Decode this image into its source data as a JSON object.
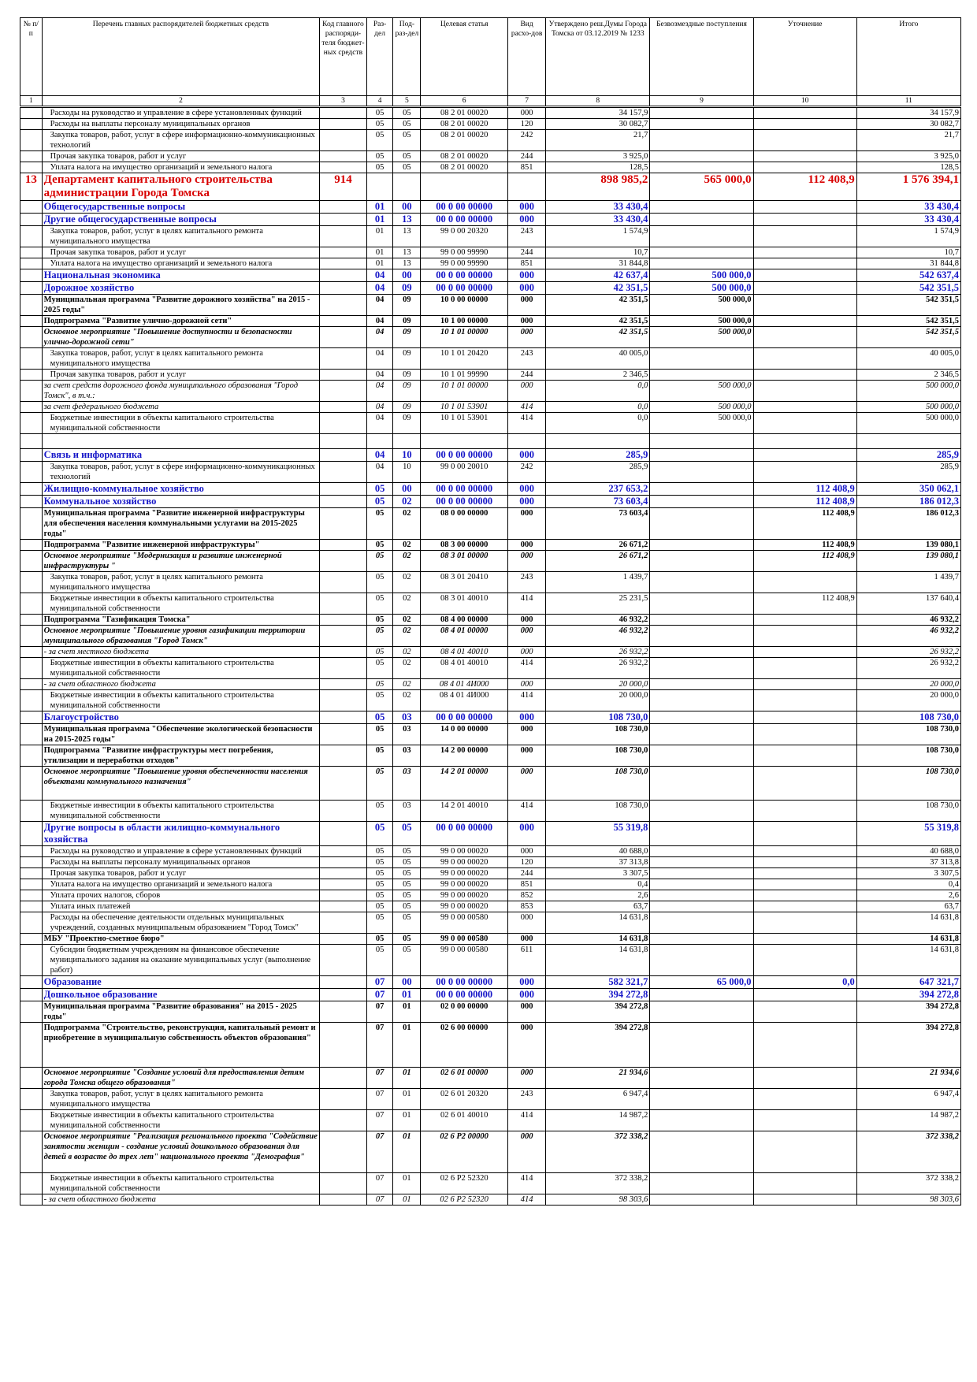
{
  "header": {
    "col_no": "№ п/п",
    "col_name": "Перечень главных распорядителей бюджетных средств",
    "col_code": "Код главного распоряди-теля бюджет-ных средств",
    "col_section": "Раз-дел",
    "col_subsection": "Под-раз-дел",
    "col_target": "Целевая статья",
    "col_expense_type": "Вид расхо-дов",
    "col_approved": "Утверждено реш.Думы Города Томска от 03.12.2019 № 1233",
    "col_grants": "Безвозмездные поступления",
    "col_refine": "Уточнение",
    "col_total": "Итого",
    "numbers": [
      "1",
      "2",
      "3",
      "4",
      "5",
      "6",
      "7",
      "8",
      "9",
      "10",
      "11"
    ]
  },
  "rows": [
    {
      "s": "norm",
      "no": "",
      "name": "Расходы на руководство и управление в сфере установленных функций",
      "code": "",
      "r": "05",
      "p": "05",
      "cs": "08 2 01 00020",
      "vr": "000",
      "a": "34 157,9",
      "b": "",
      "c": "",
      "t": "34 157,9"
    },
    {
      "s": "norm",
      "no": "",
      "name": "Расходы на выплаты персоналу муниципальных органов",
      "code": "",
      "r": "05",
      "p": "05",
      "cs": "08 2 01 00020",
      "vr": "120",
      "a": "30 082,7",
      "b": "",
      "c": "",
      "t": "30 082,7"
    },
    {
      "s": "norm",
      "no": "",
      "name": "Закупка товаров, работ, услуг в сфере информационно-коммуникационных технологий",
      "code": "",
      "r": "05",
      "p": "05",
      "cs": "08 2 01 00020",
      "vr": "242",
      "a": "21,7",
      "b": "",
      "c": "",
      "t": "21,7"
    },
    {
      "s": "norm",
      "no": "",
      "name": "Прочая закупка товаров, работ и услуг",
      "code": "",
      "r": "05",
      "p": "05",
      "cs": "08 2 01 00020",
      "vr": "244",
      "a": "3 925,0",
      "b": "",
      "c": "",
      "t": "3 925,0"
    },
    {
      "s": "norm",
      "no": "",
      "name": "Уплата налога на имущество организаций и земельного налога",
      "code": "",
      "r": "05",
      "p": "05",
      "cs": "08 2 01 00020",
      "vr": "851",
      "a": "128,5",
      "b": "",
      "c": "",
      "t": "128,5"
    },
    {
      "s": "red",
      "no": "13",
      "name": "Департамент капитального строительства администрации Города Томска",
      "code": "914",
      "r": "",
      "p": "",
      "cs": "",
      "vr": "",
      "a": "898 985,2",
      "b": "565 000,0",
      "c": "112 408,9",
      "t": "1 576 394,1"
    },
    {
      "s": "blue",
      "no": "",
      "name": "Общегосударственные вопросы",
      "code": "",
      "r": "01",
      "p": "00",
      "cs": "00 0 00 00000",
      "vr": "000",
      "a": "33 430,4",
      "b": "",
      "c": "",
      "t": "33 430,4"
    },
    {
      "s": "blue",
      "no": "",
      "name": "Другие общегосударственные вопросы",
      "code": "",
      "r": "01",
      "p": "13",
      "cs": "00 0 00 00000",
      "vr": "000",
      "a": "33 430,4",
      "b": "",
      "c": "",
      "t": "33 430,4"
    },
    {
      "s": "norm",
      "no": "",
      "name": "Закупка товаров, работ, услуг в целях капитального ремонта муниципального имущества",
      "code": "",
      "r": "01",
      "p": "13",
      "cs": "99 0 00 20320",
      "vr": "243",
      "a": "1 574,9",
      "b": "",
      "c": "",
      "t": "1 574,9"
    },
    {
      "s": "norm",
      "no": "",
      "name": "Прочая закупка товаров, работ и услуг",
      "code": "",
      "r": "01",
      "p": "13",
      "cs": "99 0 00 99990",
      "vr": "244",
      "a": "10,7",
      "b": "",
      "c": "",
      "t": "10,7"
    },
    {
      "s": "norm",
      "no": "",
      "name": "Уплата налога на имущество организаций и земельного налога",
      "code": "",
      "r": "01",
      "p": "13",
      "cs": "99 0 00 99990",
      "vr": "851",
      "a": "31 844,8",
      "b": "",
      "c": "",
      "t": "31 844,8"
    },
    {
      "s": "blue",
      "no": "",
      "name": "Национальная экономика",
      "code": "",
      "r": "04",
      "p": "00",
      "cs": "00 0 00 00000",
      "vr": "000",
      "a": "42 637,4",
      "b": "500 000,0",
      "c": "",
      "t": "542 637,4"
    },
    {
      "s": "blue",
      "no": "",
      "name": "Дорожное хозяйство",
      "code": "",
      "r": "04",
      "p": "09",
      "cs": "00 0 00 00000",
      "vr": "000",
      "a": "42 351,5",
      "b": "500 000,0",
      "c": "",
      "t": "542 351,5"
    },
    {
      "s": "bold",
      "no": "",
      "name": "Муниципальная программа \"Развитие дорожного хозяйства\" на 2015 - 2025 годы\"",
      "code": "",
      "r": "04",
      "p": "09",
      "cs": "10 0 00 00000",
      "vr": "000",
      "a": "42 351,5",
      "b": "500 000,0",
      "c": "",
      "t": "542 351,5"
    },
    {
      "s": "bold",
      "no": "",
      "name": "Подпрограмма \"Развитие улично-дорожной сети\"",
      "code": "",
      "r": "04",
      "p": "09",
      "cs": "10 1 00 00000",
      "vr": "000",
      "a": "42 351,5",
      "b": "500 000,0",
      "c": "",
      "t": "542 351,5"
    },
    {
      "s": "bi",
      "no": "",
      "name": "Основное мероприятие \"Повышение доступности и безопасности улично-дорожной сети\"",
      "code": "",
      "r": "04",
      "p": "09",
      "cs": "10 1 01 00000",
      "vr": "000",
      "a": "42 351,5",
      "b": "500 000,0",
      "c": "",
      "t": "542 351,5"
    },
    {
      "s": "norm",
      "no": "",
      "name": "Закупка товаров, работ, услуг в целях капитального ремонта муниципального имущества",
      "code": "",
      "r": "04",
      "p": "09",
      "cs": "10 1 01 20420",
      "vr": "243",
      "a": "40 005,0",
      "b": "",
      "c": "",
      "t": "40 005,0"
    },
    {
      "s": "norm",
      "no": "",
      "name": "Прочая закупка товаров, работ и услуг",
      "code": "",
      "r": "04",
      "p": "09",
      "cs": "10 1 01 99990",
      "vr": "244",
      "a": "2 346,5",
      "b": "",
      "c": "",
      "t": "2 346,5"
    },
    {
      "s": "it",
      "no": "",
      "name": "за счет средств дорожного фонда муниципального образования \"Город Томск\", в т.ч.:",
      "code": "",
      "r": "04",
      "p": "09",
      "cs": "10 1 01 00000",
      "vr": "000",
      "a": "0,0",
      "b": "500 000,0",
      "c": "",
      "t": "500 000,0"
    },
    {
      "s": "it",
      "no": "",
      "name": "за счет федерального бюджета",
      "code": "",
      "r": "04",
      "p": "09",
      "cs": "10 1 01 53901",
      "vr": "414",
      "a": "0,0",
      "b": "500 000,0",
      "c": "",
      "t": "500 000,0"
    },
    {
      "s": "norm",
      "no": "",
      "name": "Бюджетные инвестиции в объекты капитального строительства муниципальной собственности",
      "code": "",
      "r": "04",
      "p": "09",
      "cs": "10 1 01 53901",
      "vr": "414",
      "a": "0,0",
      "b": "500 000,0",
      "c": "",
      "t": "500 000,0"
    },
    {
      "s": "gap",
      "no": "",
      "name": "",
      "code": "",
      "r": "",
      "p": "",
      "cs": "",
      "vr": "",
      "a": "",
      "b": "",
      "c": "",
      "t": ""
    },
    {
      "s": "blue",
      "no": "",
      "name": "Связь и информатика",
      "code": "",
      "r": "04",
      "p": "10",
      "cs": "00 0 00 00000",
      "vr": "000",
      "a": "285,9",
      "b": "",
      "c": "",
      "t": "285,9"
    },
    {
      "s": "norm",
      "no": "",
      "name": "Закупка товаров, работ, услуг в сфере информационно-коммуникационных технологий",
      "code": "",
      "r": "04",
      "p": "10",
      "cs": "99 0 00 20010",
      "vr": "242",
      "a": "285,9",
      "b": "",
      "c": "",
      "t": "285,9"
    },
    {
      "s": "blue",
      "no": "",
      "name": "Жилищно-коммунальное хозяйство",
      "code": "",
      "r": "05",
      "p": "00",
      "cs": "00 0 00 00000",
      "vr": "000",
      "a": "237 653,2",
      "b": "",
      "c": "112 408,9",
      "t": "350 062,1"
    },
    {
      "s": "blue",
      "no": "",
      "name": "Коммунальное хозяйство",
      "code": "",
      "r": "05",
      "p": "02",
      "cs": "00 0 00 00000",
      "vr": "000",
      "a": "73 603,4",
      "b": "",
      "c": "112 408,9",
      "t": "186 012,3"
    },
    {
      "s": "bold",
      "no": "",
      "name": "Муниципальная программа \"Развитие инженерной инфраструктуры для обеспечения населения коммунальными услугами на 2015-2025 годы\"",
      "code": "",
      "r": "05",
      "p": "02",
      "cs": "08 0 00 00000",
      "vr": "000",
      "a": "73 603,4",
      "b": "",
      "c": "112 408,9",
      "t": "186 012,3"
    },
    {
      "s": "bold",
      "no": "",
      "name": "Подпрограмма \"Развитие инженерной инфраструктуры\"",
      "code": "",
      "r": "05",
      "p": "02",
      "cs": "08 3 00 00000",
      "vr": "000",
      "a": "26 671,2",
      "b": "",
      "c": "112 408,9",
      "t": "139 080,1"
    },
    {
      "s": "bi",
      "no": "",
      "name": "Основное мероприятие \"Модернизация и развитие инженерной инфраструктуры \"",
      "code": "",
      "r": "05",
      "p": "02",
      "cs": "08 3 01 00000",
      "vr": "000",
      "a": "26 671,2",
      "b": "",
      "c": "112 408,9",
      "t": "139 080,1"
    },
    {
      "s": "norm",
      "no": "",
      "name": "Закупка товаров, работ, услуг в целях капитального ремонта муниципального имущества",
      "code": "",
      "r": "05",
      "p": "02",
      "cs": "08 3 01 20410",
      "vr": "243",
      "a": "1 439,7",
      "b": "",
      "c": "",
      "t": "1 439,7"
    },
    {
      "s": "norm",
      "no": "",
      "name": "Бюджетные инвестиции в объекты капитального строительства муниципальной собственности",
      "code": "",
      "r": "05",
      "p": "02",
      "cs": "08 3 01 40010",
      "vr": "414",
      "a": "25 231,5",
      "b": "",
      "c": "112 408,9",
      "t": "137 640,4"
    },
    {
      "s": "bold",
      "no": "",
      "name": "Подпрограмма \"Газификация Томска\"",
      "code": "",
      "r": "05",
      "p": "02",
      "cs": "08 4 00 00000",
      "vr": "000",
      "a": "46 932,2",
      "b": "",
      "c": "",
      "t": "46 932,2"
    },
    {
      "s": "bi",
      "no": "",
      "name": "Основное мероприятие \"Повышение уровня газификации территории муниципального образования \"Город Томск\"",
      "code": "",
      "r": "05",
      "p": "02",
      "cs": "08 4 01 00000",
      "vr": "000",
      "a": "46 932,2",
      "b": "",
      "c": "",
      "t": "46 932,2"
    },
    {
      "s": "it",
      "no": "",
      "name": "- за счет местного бюджета",
      "code": "",
      "r": "05",
      "p": "02",
      "cs": "08 4 01 40010",
      "vr": "000",
      "a": "26 932,2",
      "b": "",
      "c": "",
      "t": "26 932,2"
    },
    {
      "s": "norm",
      "no": "",
      "name": "Бюджетные инвестиции в объекты капитального строительства муниципальной собственности",
      "code": "",
      "r": "05",
      "p": "02",
      "cs": "08 4 01 40010",
      "vr": "414",
      "a": "26 932,2",
      "b": "",
      "c": "",
      "t": "26 932,2"
    },
    {
      "s": "it",
      "no": "",
      "name": "- за счет областного бюджета",
      "code": "",
      "r": "05",
      "p": "02",
      "cs": "08 4 01 4И000",
      "vr": "000",
      "a": "20 000,0",
      "b": "",
      "c": "",
      "t": "20 000,0"
    },
    {
      "s": "norm",
      "no": "",
      "name": "Бюджетные инвестиции в объекты капитального строительства муниципальной собственности",
      "code": "",
      "r": "05",
      "p": "02",
      "cs": "08 4 01 4И000",
      "vr": "414",
      "a": "20 000,0",
      "b": "",
      "c": "",
      "t": "20 000,0"
    },
    {
      "s": "blue",
      "no": "",
      "name": "Благоустройство",
      "code": "",
      "r": "05",
      "p": "03",
      "cs": "00 0 00 00000",
      "vr": "000",
      "a": "108 730,0",
      "b": "",
      "c": "",
      "t": "108 730,0"
    },
    {
      "s": "bold",
      "no": "",
      "name": "Муниципальная программа \"Обеспечение экологической безопасности на 2015-2025 годы\"",
      "code": "",
      "r": "05",
      "p": "03",
      "cs": "14 0 00 00000",
      "vr": "000",
      "a": "108 730,0",
      "b": "",
      "c": "",
      "t": "108 730,0"
    },
    {
      "s": "bold",
      "no": "",
      "name": "Подпрограмма \"Развитие инфраструктуры мест погребения, утилизации и переработки отходов\"",
      "code": "",
      "r": "05",
      "p": "03",
      "cs": "14 2 00 00000",
      "vr": "000",
      "a": "108 730,0",
      "b": "",
      "c": "",
      "t": "108 730,0"
    },
    {
      "s": "bi",
      "no": "",
      "name": "Основное мероприятие \"Повышение уровня обеспеченности населения объектами коммунального назначения\"",
      "code": "",
      "r": "05",
      "p": "03",
      "cs": "14 2 01 00000",
      "vr": "000",
      "a": "108 730,0",
      "b": "",
      "c": "",
      "t": "108 730,0",
      "h": 42
    },
    {
      "s": "norm",
      "no": "",
      "name": "Бюджетные инвестиции в объекты капитального строительства муниципальной собственности",
      "code": "",
      "r": "05",
      "p": "03",
      "cs": "14 2 01 40010",
      "vr": "414",
      "a": "108 730,0",
      "b": "",
      "c": "",
      "t": "108 730,0"
    },
    {
      "s": "blue",
      "no": "",
      "name": "Другие вопросы в области жилищно-коммунального хозяйства",
      "code": "",
      "r": "05",
      "p": "05",
      "cs": "00 0 00 00000",
      "vr": "000",
      "a": "55 319,8",
      "b": "",
      "c": "",
      "t": "55 319,8"
    },
    {
      "s": "norm",
      "no": "",
      "name": "Расходы на руководство и управление в сфере установленных функций",
      "code": "",
      "r": "05",
      "p": "05",
      "cs": "99 0 00 00020",
      "vr": "000",
      "a": "40 688,0",
      "b": "",
      "c": "",
      "t": "40 688,0"
    },
    {
      "s": "norm",
      "no": "",
      "name": "Расходы на выплаты персоналу муниципальных органов",
      "code": "",
      "r": "05",
      "p": "05",
      "cs": "99 0 00 00020",
      "vr": "120",
      "a": "37 313,8",
      "b": "",
      "c": "",
      "t": "37 313,8"
    },
    {
      "s": "norm",
      "no": "",
      "name": "Прочая закупка товаров, работ и услуг",
      "code": "",
      "r": "05",
      "p": "05",
      "cs": "99 0 00 00020",
      "vr": "244",
      "a": "3 307,5",
      "b": "",
      "c": "",
      "t": "3 307,5"
    },
    {
      "s": "norm",
      "no": "",
      "name": "Уплата налога на имущество организаций и земельного налога",
      "code": "",
      "r": "05",
      "p": "05",
      "cs": "99 0 00 00020",
      "vr": "851",
      "a": "0,4",
      "b": "",
      "c": "",
      "t": "0,4"
    },
    {
      "s": "norm",
      "no": "",
      "name": "Уплата прочих налогов, сборов",
      "code": "",
      "r": "05",
      "p": "05",
      "cs": "99 0 00 00020",
      "vr": "852",
      "a": "2,6",
      "b": "",
      "c": "",
      "t": "2,6"
    },
    {
      "s": "norm",
      "no": "",
      "name": "Уплата иных платежей",
      "code": "",
      "r": "05",
      "p": "05",
      "cs": "99 0 00 00020",
      "vr": "853",
      "a": "63,7",
      "b": "",
      "c": "",
      "t": "63,7"
    },
    {
      "s": "norm",
      "no": "",
      "name": "Расходы на обеспечение деятельности отдельных муниципальных учреждений, созданных муниципальным образованием \"Город Томск\"",
      "code": "",
      "r": "05",
      "p": "05",
      "cs": "99 0 00 00580",
      "vr": "000",
      "a": "14 631,8",
      "b": "",
      "c": "",
      "t": "14 631,8"
    },
    {
      "s": "bold",
      "no": "",
      "name": "МБУ \"Проектно-сметное бюро\"",
      "code": "",
      "r": "05",
      "p": "05",
      "cs": "99 0 00 00580",
      "vr": "000",
      "a": "14 631,8",
      "b": "",
      "c": "",
      "t": "14 631,8"
    },
    {
      "s": "norm",
      "no": "",
      "name": "Субсидии бюджетным учреждениям на финансовое обеспечение муниципального задания на оказание муниципальных услуг (выполнение работ)",
      "code": "",
      "r": "05",
      "p": "05",
      "cs": "99 0 00 00580",
      "vr": "611",
      "a": "14 631,8",
      "b": "",
      "c": "",
      "t": "14 631,8"
    },
    {
      "s": "blue",
      "no": "",
      "name": "Образование",
      "code": "",
      "r": "07",
      "p": "00",
      "cs": "00 0 00 00000",
      "vr": "000",
      "a": "582 321,7",
      "b": "65 000,0",
      "c": "0,0",
      "t": "647 321,7"
    },
    {
      "s": "blue",
      "no": "",
      "name": "Дошкольное образование",
      "code": "",
      "r": "07",
      "p": "01",
      "cs": "00 0 00 00000",
      "vr": "000",
      "a": "394 272,8",
      "b": "",
      "c": "",
      "t": "394 272,8"
    },
    {
      "s": "bold",
      "no": "",
      "name": "Муниципальная программа \"Развитие образования\" на 2015 - 2025 годы\"",
      "code": "",
      "r": "07",
      "p": "01",
      "cs": "02 0 00 00000",
      "vr": "000",
      "a": "394 272,8",
      "b": "",
      "c": "",
      "t": "394 272,8"
    },
    {
      "s": "bold",
      "no": "",
      "name": "Подпрограмма \"Строительство, реконструкция, капитальный ремонт и приобретение в муниципальную собственность объектов образования\"",
      "code": "",
      "r": "07",
      "p": "01",
      "cs": "02 6 00 00000",
      "vr": "000",
      "a": "394 272,8",
      "b": "",
      "c": "",
      "t": "394 272,8",
      "h": 56
    },
    {
      "s": "bi",
      "no": "",
      "name": "Основное мероприятие \"Создание условий для предоставления детям города Томска общего образования\"",
      "code": "",
      "r": "07",
      "p": "01",
      "cs": "02 6 01 00000",
      "vr": "000",
      "a": "21 934,6",
      "b": "",
      "c": "",
      "t": "21 934,6"
    },
    {
      "s": "norm",
      "no": "",
      "name": "Закупка товаров, работ, услуг в целях капитального ремонта муниципального имущества",
      "code": "",
      "r": "07",
      "p": "01",
      "cs": "02 6 01 20320",
      "vr": "243",
      "a": "6 947,4",
      "b": "",
      "c": "",
      "t": "6 947,4"
    },
    {
      "s": "norm",
      "no": "",
      "name": "Бюджетные инвестиции в объекты капитального строительства муниципальной собственности",
      "code": "",
      "r": "07",
      "p": "01",
      "cs": "02 6 01 40010",
      "vr": "414",
      "a": "14 987,2",
      "b": "",
      "c": "",
      "t": "14 987,2"
    },
    {
      "s": "bi",
      "no": "",
      "name": "Основное мероприятие \"Реализация регионального проекта \"Содействие занятости женщин - создание условий дошкольного образования для детей в возрасте до трех лет\" национального проекта \"Демография\"",
      "code": "",
      "r": "07",
      "p": "01",
      "cs": "02 6 P2 00000",
      "vr": "000",
      "a": "372 338,2",
      "b": "",
      "c": "",
      "t": "372 338,2",
      "h": 52
    },
    {
      "s": "norm",
      "no": "",
      "name": "Бюджетные инвестиции в объекты капитального строительства муниципальной собственности",
      "code": "",
      "r": "07",
      "p": "01",
      "cs": "02 6 P2 52320",
      "vr": "414",
      "a": "372 338,2",
      "b": "",
      "c": "",
      "t": "372 338,2"
    },
    {
      "s": "it",
      "no": "",
      "name": "- за счет областного бюджета",
      "code": "",
      "r": "07",
      "p": "01",
      "cs": "02 6 P2 52320",
      "vr": "414",
      "a": "98 303,6",
      "b": "",
      "c": "",
      "t": "98 303,6"
    }
  ]
}
